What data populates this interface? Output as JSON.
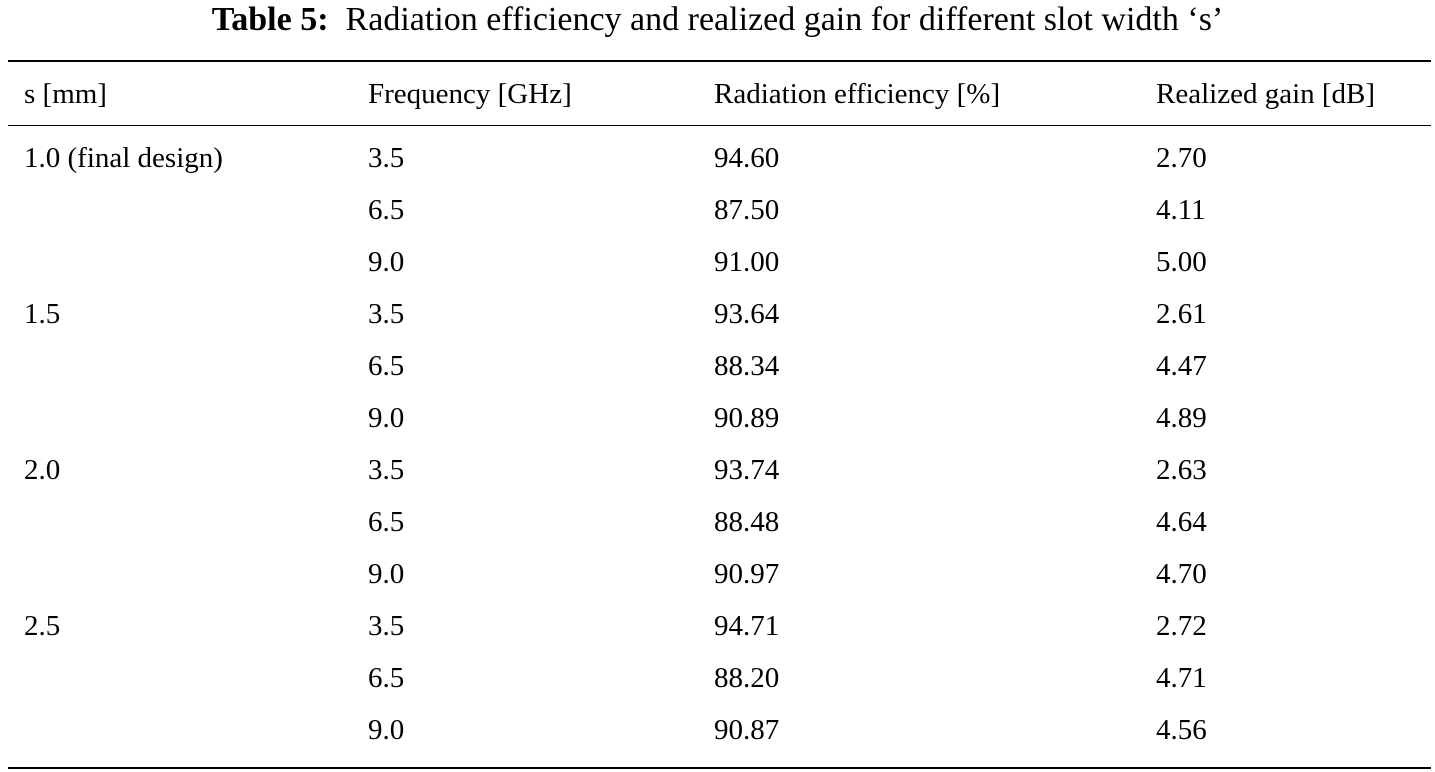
{
  "caption": {
    "label": "Table 5:",
    "text": "Radiation efficiency and realized gain for different slot width ‘s’"
  },
  "table": {
    "headers": [
      "s [mm]",
      "Frequency [GHz]",
      "Radiation efficiency [%]",
      "Realized gain [dB]"
    ],
    "rows": [
      [
        "1.0 (final design)",
        "3.5",
        "94.60",
        "2.70"
      ],
      [
        "",
        "6.5",
        "87.50",
        "4.11"
      ],
      [
        "",
        "9.0",
        "91.00",
        "5.00"
      ],
      [
        "1.5",
        "3.5",
        "93.64",
        "2.61"
      ],
      [
        "",
        "6.5",
        "88.34",
        "4.47"
      ],
      [
        "",
        "9.0",
        "90.89",
        "4.89"
      ],
      [
        "2.0",
        "3.5",
        "93.74",
        "2.63"
      ],
      [
        "",
        "6.5",
        "88.48",
        "4.64"
      ],
      [
        "",
        "9.0",
        "90.97",
        "4.70"
      ],
      [
        "2.5",
        "3.5",
        "94.71",
        "2.72"
      ],
      [
        "",
        "6.5",
        "88.20",
        "4.71"
      ],
      [
        "",
        "9.0",
        "90.87",
        "4.56"
      ]
    ]
  }
}
